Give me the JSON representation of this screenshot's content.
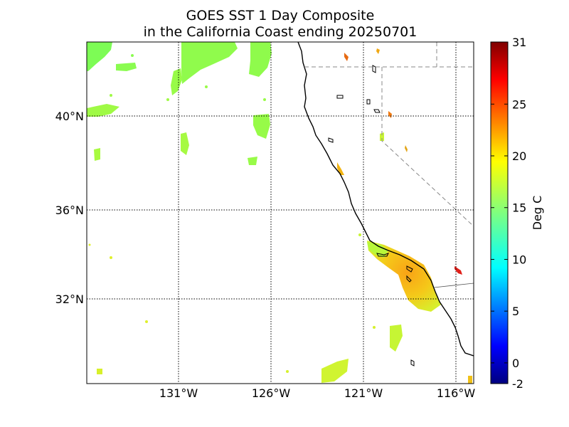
{
  "title": {
    "line1": "GOES SST 1 Day Composite",
    "line2": "in the California Coast ending 20250701"
  },
  "map": {
    "lat_labels": [
      "40°N",
      "36°N",
      "32°N"
    ],
    "lon_labels": [
      "131°W",
      "126°W",
      "121°W",
      "116°W"
    ],
    "land_color": "#ffffff",
    "coastline_color": "#000000",
    "gridlines": "dotted"
  },
  "colorbar": {
    "label": "Deg C",
    "min": -2,
    "max": 31,
    "ticks": [
      "31",
      "25",
      "20",
      "15",
      "10",
      "5",
      "0",
      "-2"
    ],
    "colormap": "jet"
  }
}
